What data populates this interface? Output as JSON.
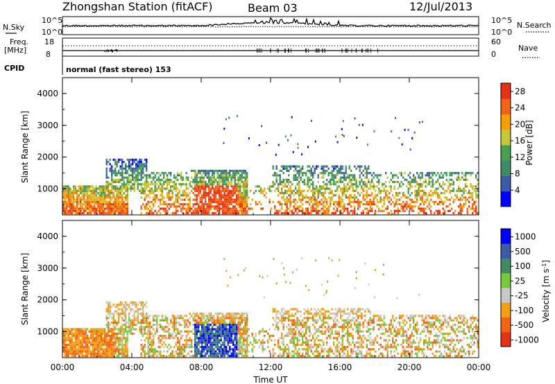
{
  "header": {
    "station": "Zhongshan Station (fitACF)",
    "beam": "Beam 03",
    "date": "12/Jul/2013",
    "cpid_label": "CPID",
    "cpid_text": "normal (fast stereo) 153"
  },
  "panels": {
    "sky": {
      "left_label": "N.Sky",
      "right_label": "N.Search",
      "left_ticks": [
        "10^5",
        "10^0"
      ],
      "right_ticks": [
        "10^5",
        "10^0"
      ]
    },
    "freq": {
      "left_label_1": "Freq.",
      "left_label_2": "[MHz]",
      "right_label": "Nave",
      "left_ticks": [
        "18",
        "8"
      ],
      "right_ticks": [
        "60",
        "0"
      ]
    }
  },
  "colors": {
    "power": [
      "#0000ff",
      "#3c5aa8",
      "#3f8b67",
      "#45a050",
      "#c8c83c",
      "#f5a000",
      "#f06414",
      "#e63214"
    ],
    "velocity": [
      "#0000ff",
      "#3c5aa8",
      "#3f8b67",
      "#7ac83c",
      "#c8c8c8",
      "#f0a010",
      "#f06414",
      "#e63214"
    ]
  },
  "chart_data": [
    {
      "type": "heatmap",
      "quantity": "power",
      "ylabel": "Slant Range [km]",
      "xlabel": "",
      "ylim": [
        180,
        4500
      ],
      "xlim_hours": [
        0,
        24
      ],
      "x_ticks": [
        "00:00",
        "04:00",
        "08:00",
        "12:00",
        "16:00",
        "20:00",
        "00:00"
      ],
      "y_ticks": [
        "1000",
        "2000",
        "3000",
        "4000"
      ],
      "colorbar": {
        "label": "Power [dB]",
        "ticks": [
          "4",
          "8",
          "12",
          "16",
          "20",
          "24",
          "28"
        ],
        "range": [
          0,
          30
        ]
      }
    },
    {
      "type": "heatmap",
      "quantity": "velocity",
      "ylabel": "Slant Range [km]",
      "xlabel": "Time UT",
      "ylim": [
        180,
        4500
      ],
      "xlim_hours": [
        0,
        24
      ],
      "x_ticks": [
        "00:00",
        "04:00",
        "08:00",
        "12:00",
        "16:00",
        "20:00",
        "00:00"
      ],
      "y_ticks": [
        "1000",
        "2000",
        "3000",
        "4000"
      ],
      "colorbar": {
        "label": "Velocity [m s^-1]",
        "ticks": [
          "1000",
          "500",
          "100",
          "25",
          "-25",
          "-100",
          "-500",
          "-1000"
        ]
      }
    }
  ]
}
